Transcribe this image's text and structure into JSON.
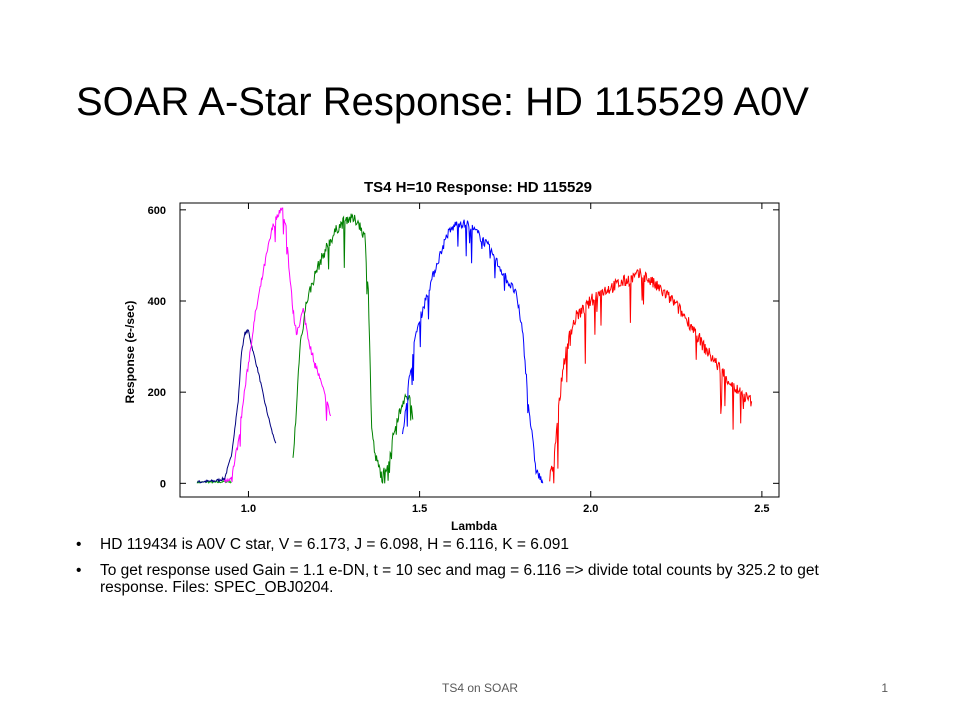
{
  "slide": {
    "title": "SOAR A-Star Response: HD 115529 A0V",
    "bullets": [
      "HD 119434  is A0V C star, V = 6.173, J = 6.098, H = 6.116, K = 6.091",
      "To get response used Gain = 1.1 e-DN, t = 10 sec and mag = 6.116 => divide total counts by 325.2 to get response.  Files: SPEC_OBJ0204."
    ],
    "bullet_symbol": "•",
    "footer_text": "TS4 on SOAR",
    "page_number": "1"
  },
  "chart_data": {
    "type": "line",
    "title": "TS4 H=10 Response: HD 115529",
    "xlabel": "Lambda",
    "ylabel": "Response (e-/sec)",
    "xlim": [
      0.8,
      2.55
    ],
    "ylim": [
      -30,
      615
    ],
    "xticks": [
      1.0,
      1.5,
      2.0,
      2.5
    ],
    "xtick_labels": [
      "1.0",
      "1.5",
      "2.0",
      "2.5"
    ],
    "yticks": [
      0,
      200,
      400,
      600
    ],
    "ytick_labels": [
      "0",
      "200",
      "400",
      "600"
    ],
    "grid": false,
    "legend": "none",
    "series": [
      {
        "color": "#00a000",
        "noise": 2,
        "values": [
          [
            0.85,
            2
          ],
          [
            0.88,
            3
          ],
          [
            0.91,
            2
          ],
          [
            0.93,
            4
          ],
          [
            0.95,
            3
          ]
        ]
      },
      {
        "color": "#000080",
        "noise": 3,
        "values": [
          [
            0.85,
            3
          ],
          [
            0.9,
            5
          ],
          [
            0.93,
            10
          ],
          [
            0.95,
            60
          ],
          [
            0.97,
            180
          ],
          [
            0.98,
            290
          ],
          [
            0.99,
            330
          ],
          [
            1.0,
            335
          ],
          [
            1.01,
            300
          ],
          [
            1.03,
            240
          ],
          [
            1.05,
            170
          ],
          [
            1.07,
            110
          ],
          [
            1.08,
            88
          ]
        ]
      },
      {
        "color": "#ff00ff",
        "noise": 8,
        "values": [
          [
            0.93,
            0
          ],
          [
            0.95,
            10
          ],
          [
            0.97,
            90
          ],
          [
            0.99,
            210
          ],
          [
            1.02,
            370
          ],
          [
            1.05,
            490
          ],
          [
            1.07,
            560
          ],
          [
            1.09,
            598
          ],
          [
            1.1,
            600
          ],
          [
            1.11,
            560
          ],
          [
            1.12,
            460
          ],
          [
            1.13,
            380
          ],
          [
            1.14,
            330
          ],
          [
            1.16,
            380
          ],
          [
            1.18,
            300
          ],
          [
            1.2,
            250
          ],
          [
            1.22,
            200
          ],
          [
            1.24,
            148
          ]
        ]
      },
      {
        "color": "#008000",
        "noise": 12,
        "values": [
          [
            1.13,
            50
          ],
          [
            1.14,
            160
          ],
          [
            1.15,
            300
          ],
          [
            1.17,
            400
          ],
          [
            1.2,
            470
          ],
          [
            1.23,
            520
          ],
          [
            1.26,
            560
          ],
          [
            1.29,
            582
          ],
          [
            1.32,
            575
          ],
          [
            1.34,
            540
          ],
          [
            1.35,
            430
          ],
          [
            1.36,
            120
          ],
          [
            1.37,
            60
          ],
          [
            1.39,
            15
          ],
          [
            1.41,
            50
          ],
          [
            1.43,
            130
          ],
          [
            1.45,
            180
          ],
          [
            1.47,
            190
          ],
          [
            1.48,
            140
          ]
        ]
      },
      {
        "color": "#0000ff",
        "noise": 10,
        "values": [
          [
            1.45,
            110
          ],
          [
            1.47,
            230
          ],
          [
            1.49,
            330
          ],
          [
            1.52,
            410
          ],
          [
            1.55,
            480
          ],
          [
            1.58,
            545
          ],
          [
            1.61,
            572
          ],
          [
            1.64,
            568
          ],
          [
            1.67,
            548
          ],
          [
            1.7,
            520
          ],
          [
            1.73,
            480
          ],
          [
            1.76,
            440
          ],
          [
            1.78,
            420
          ],
          [
            1.8,
            340
          ],
          [
            1.82,
            160
          ],
          [
            1.84,
            30
          ],
          [
            1.86,
            0
          ]
        ]
      },
      {
        "color": "#ff0000",
        "noise": 14,
        "values": [
          [
            1.88,
            10
          ],
          [
            1.89,
            40
          ],
          [
            1.9,
            120
          ],
          [
            1.92,
            260
          ],
          [
            1.94,
            330
          ],
          [
            1.96,
            370
          ],
          [
            1.98,
            380
          ],
          [
            2.0,
            400
          ],
          [
            2.03,
            420
          ],
          [
            2.06,
            430
          ],
          [
            2.09,
            440
          ],
          [
            2.12,
            450
          ],
          [
            2.15,
            460
          ],
          [
            2.18,
            440
          ],
          [
            2.21,
            420
          ],
          [
            2.24,
            400
          ],
          [
            2.27,
            370
          ],
          [
            2.3,
            340
          ],
          [
            2.33,
            300
          ],
          [
            2.36,
            270
          ],
          [
            2.39,
            240
          ],
          [
            2.42,
            210
          ],
          [
            2.45,
            190
          ],
          [
            2.47,
            180
          ]
        ]
      }
    ]
  }
}
